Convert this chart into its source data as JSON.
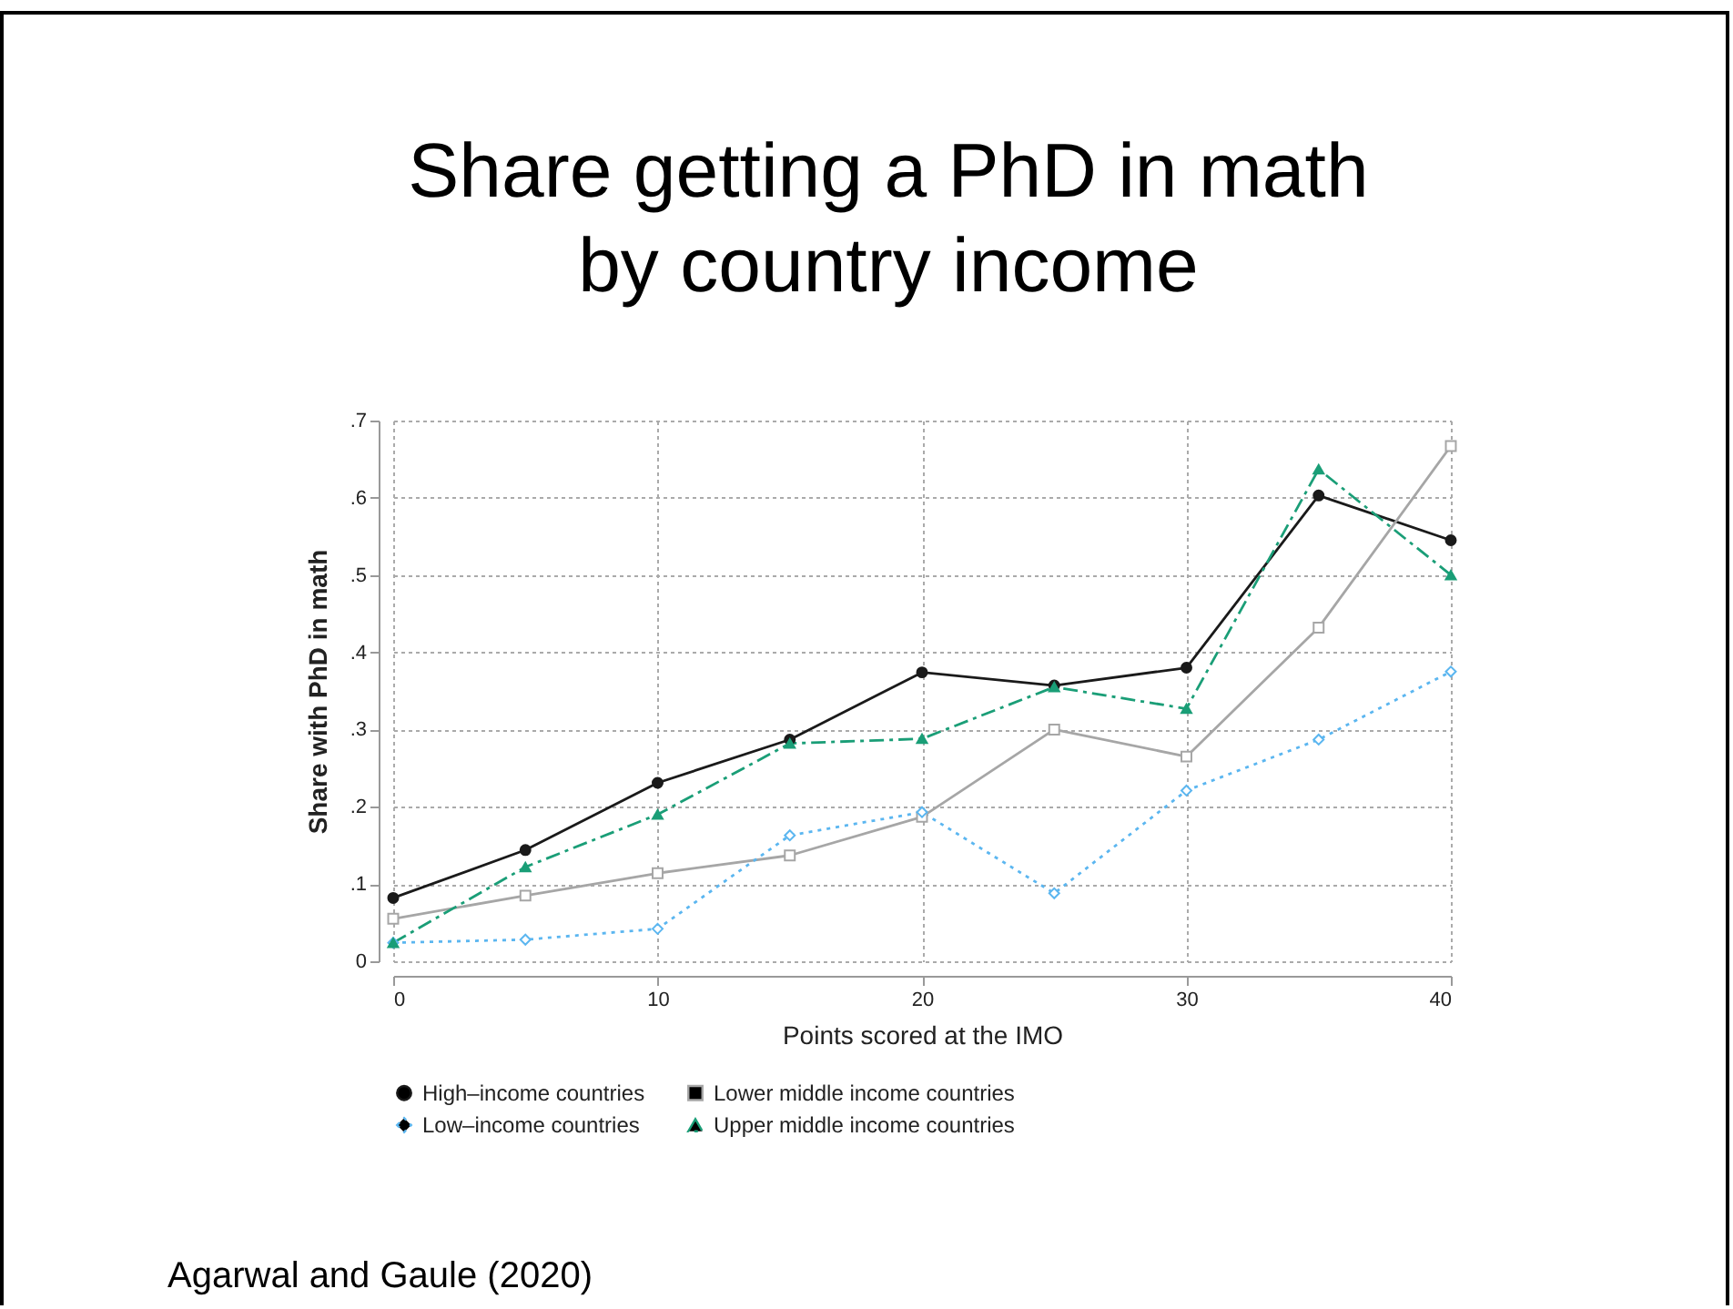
{
  "chart_data": {
    "type": "line",
    "title": "Share getting a PhD in math by country income",
    "xlabel": "Points scored at the IMO",
    "ylabel": "Share with PhD in math",
    "x": [
      0,
      5,
      10,
      15,
      20,
      25,
      30,
      35,
      40
    ],
    "series": [
      {
        "name": "High–income countries",
        "color": "#1a1a1a",
        "marker": "circle",
        "line_style": "solid",
        "values": [
          0.082,
          0.144,
          0.231,
          0.287,
          0.374,
          0.357,
          0.38,
          0.603,
          0.545
        ]
      },
      {
        "name": "Lower middle income countries",
        "color": "#a6a6a6",
        "marker": "square",
        "line_style": "solid",
        "values": [
          0.055,
          0.085,
          0.114,
          0.137,
          0.187,
          0.3,
          0.265,
          0.432,
          0.667
        ]
      },
      {
        "name": "Low–income countries",
        "color": "#5bb6f0",
        "marker": "diamond",
        "line_style": "dotted",
        "values": [
          0.024,
          0.028,
          0.042,
          0.163,
          0.193,
          0.088,
          0.221,
          0.287,
          0.375
        ]
      },
      {
        "name": "Upper middle income countries",
        "color": "#1a9e77",
        "marker": "triangle",
        "line_style": "dashed",
        "values": [
          0.024,
          0.122,
          0.19,
          0.282,
          0.288,
          0.355,
          0.327,
          0.637,
          0.5
        ]
      }
    ],
    "xlim": [
      0,
      40
    ],
    "xticks": [
      0,
      10,
      20,
      30,
      40
    ],
    "ylim": [
      0,
      0.7
    ],
    "yticks": [
      {
        "value": 0,
        "label": "0"
      },
      {
        "value": 0.1,
        "label": ".1"
      },
      {
        "value": 0.2,
        "label": ".2"
      },
      {
        "value": 0.3,
        "label": ".3"
      },
      {
        "value": 0.4,
        "label": ".4"
      },
      {
        "value": 0.5,
        "label": ".5"
      },
      {
        "value": 0.6,
        "label": ".6"
      },
      {
        "value": 0.7,
        "label": ".7"
      }
    ],
    "grid": true,
    "legend": "bottom",
    "annotations": [
      "Agarwal and Gaule (2020)"
    ]
  }
}
